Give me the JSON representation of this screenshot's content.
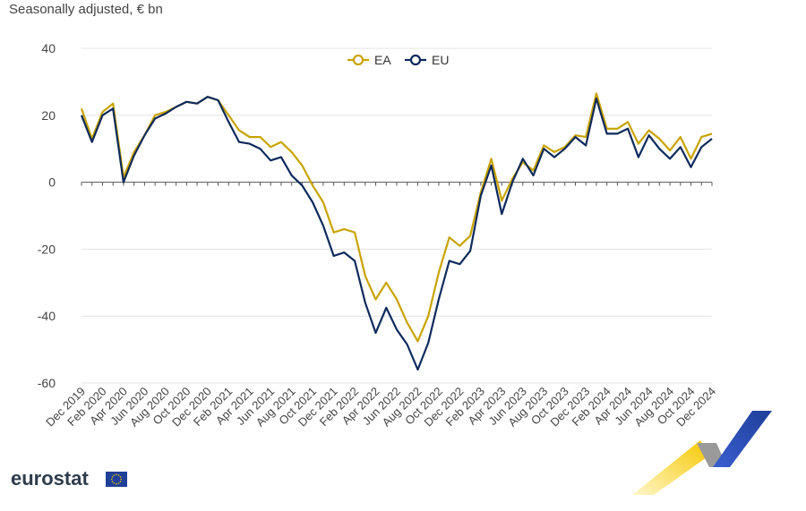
{
  "chart_data": {
    "type": "line",
    "subtitle": "Seasonally adjusted, € bn",
    "ylim": [
      -60,
      40
    ],
    "yticks": [
      40,
      20,
      0,
      -20,
      -40,
      -60
    ],
    "grid": true,
    "legend_position": "top-center",
    "x_tick_labels": [
      "Dec 2019",
      "Feb 2020",
      "Apr 2020",
      "Jun 2020",
      "Aug 2020",
      "Oct 2020",
      "Dec 2020",
      "Feb 2021",
      "Apr 2021",
      "Jun 2021",
      "Aug 2021",
      "Oct 2021",
      "Dec 2021",
      "Feb 2022",
      "Apr 2022",
      "Jun 2022",
      "Aug 2022",
      "Oct 2022",
      "Dec 2022",
      "Feb 2023",
      "Apr 2023",
      "Jun 2023",
      "Aug 2023",
      "Oct 2023",
      "Dec 2023",
      "Feb 2024",
      "Apr 2024",
      "Jun 2024",
      "Aug 2024",
      "Oct 2024",
      "Dec 2024"
    ],
    "x": [
      "Dec 2019",
      "Jan 2020",
      "Feb 2020",
      "Mar 2020",
      "Apr 2020",
      "May 2020",
      "Jun 2020",
      "Jul 2020",
      "Aug 2020",
      "Sep 2020",
      "Oct 2020",
      "Nov 2020",
      "Dec 2020",
      "Jan 2021",
      "Feb 2021",
      "Mar 2021",
      "Apr 2021",
      "May 2021",
      "Jun 2021",
      "Jul 2021",
      "Aug 2021",
      "Sep 2021",
      "Oct 2021",
      "Nov 2021",
      "Dec 2021",
      "Jan 2022",
      "Feb 2022",
      "Mar 2022",
      "Apr 2022",
      "May 2022",
      "Jun 2022",
      "Jul 2022",
      "Aug 2022",
      "Sep 2022",
      "Oct 2022",
      "Nov 2022",
      "Dec 2022",
      "Jan 2023",
      "Feb 2023",
      "Mar 2023",
      "Apr 2023",
      "May 2023",
      "Jun 2023",
      "Jul 2023",
      "Aug 2023",
      "Sep 2023",
      "Oct 2023",
      "Nov 2023",
      "Dec 2023",
      "Jan 2024",
      "Feb 2024",
      "Mar 2024",
      "Apr 2024",
      "May 2024",
      "Jun 2024",
      "Jul 2024",
      "Aug 2024",
      "Sep 2024",
      "Oct 2024",
      "Nov 2024",
      "Dec 2024"
    ],
    "series": [
      {
        "name": "EA",
        "color": "#c8a400",
        "values": [
          22,
          13,
          21,
          23.5,
          1.5,
          9,
          14,
          20,
          21,
          22.5,
          24,
          23.5,
          25.5,
          24.5,
          20,
          15.5,
          13.5,
          13.5,
          10.5,
          12,
          9,
          5,
          -1,
          -6,
          -15,
          -14,
          -15,
          -28,
          -35,
          -30,
          -35,
          -42,
          -47.5,
          -40,
          -27,
          -16.5,
          -19,
          -16,
          -3,
          7,
          -5.5,
          1,
          6,
          3.5,
          11,
          9,
          10.5,
          14,
          13.5,
          26.5,
          16,
          16,
          18,
          11.5,
          15.5,
          13,
          9.5,
          13.5,
          7,
          13.5,
          14.5
        ]
      },
      {
        "name": "EU",
        "color": "#0e2a5c",
        "values": [
          20,
          12,
          20,
          22,
          0,
          8,
          14,
          19,
          20.5,
          22.5,
          24,
          23.5,
          25.5,
          24.5,
          18,
          12,
          11.5,
          10,
          6.5,
          7.5,
          2,
          -1,
          -6,
          -13,
          -22,
          -21,
          -23.5,
          -36,
          -45,
          -37.5,
          -44,
          -48.5,
          -56,
          -48,
          -35,
          -23.5,
          -24.5,
          -20.5,
          -4,
          5,
          -9.5,
          0,
          7,
          2,
          10,
          7.5,
          10,
          13.5,
          11,
          25,
          14.5,
          14.5,
          16,
          7.5,
          14,
          10,
          7,
          10.5,
          4.5,
          10.5,
          13
        ]
      }
    ]
  },
  "branding": {
    "logo_text": "eurostat",
    "flag_color": "#1f3f99",
    "star_color": "#f5c800"
  }
}
